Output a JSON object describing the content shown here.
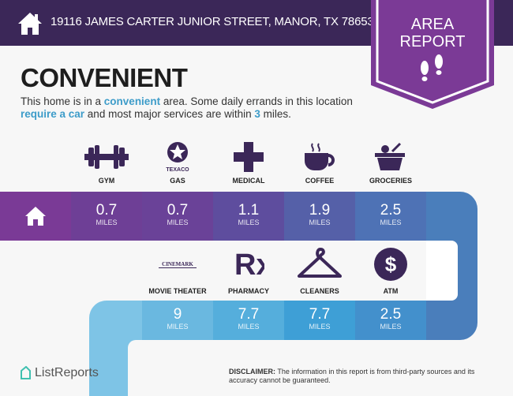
{
  "header": {
    "address": "19116 JAMES CARTER JUNIOR STREET, MANOR, TX 78653",
    "badge_line1": "AREA",
    "badge_line2": "REPORT"
  },
  "main": {
    "title": "CONVENIENT",
    "desc": {
      "p1": "This home is in a ",
      "h1": "convenient",
      "p2": " area. Some daily errands in this location ",
      "h2": "require a car",
      "p3": " and most major services are within ",
      "h3": "3",
      "p4": " miles."
    }
  },
  "unit": "MILES",
  "row1": [
    {
      "label": "GYM",
      "value": "0.7",
      "icon": "dumbbell-icon"
    },
    {
      "label": "GAS",
      "value": "0.7",
      "icon": "texaco-icon",
      "icon_text": "TEXACO"
    },
    {
      "label": "MEDICAL",
      "value": "1.1",
      "icon": "medical-cross-icon"
    },
    {
      "label": "COFFEE",
      "value": "1.9",
      "icon": "coffee-cup-icon"
    },
    {
      "label": "GROCERIES",
      "value": "2.5",
      "icon": "basket-icon"
    }
  ],
  "row2": [
    {
      "label": "MOVIE THEATER",
      "value": "9",
      "icon": "cinemark-icon",
      "icon_text": "CINEMARK"
    },
    {
      "label": "PHARMACY",
      "value": "7.7",
      "icon": "rx-icon",
      "icon_text": "Rx"
    },
    {
      "label": "CLEANERS",
      "value": "7.7",
      "icon": "hanger-icon"
    },
    {
      "label": "ATM",
      "value": "2.5",
      "icon": "dollar-icon",
      "icon_text": "$"
    }
  ],
  "colors": {
    "header": "#3b2758",
    "badge": "#7b3a96",
    "accent": "#3d9cc9"
  },
  "footer": {
    "logo": "ListReports",
    "disclaimer_label": "DISCLAIMER:",
    "disclaimer": " The information in this report is from third-party sources and its accuracy cannot be guaranteed."
  }
}
